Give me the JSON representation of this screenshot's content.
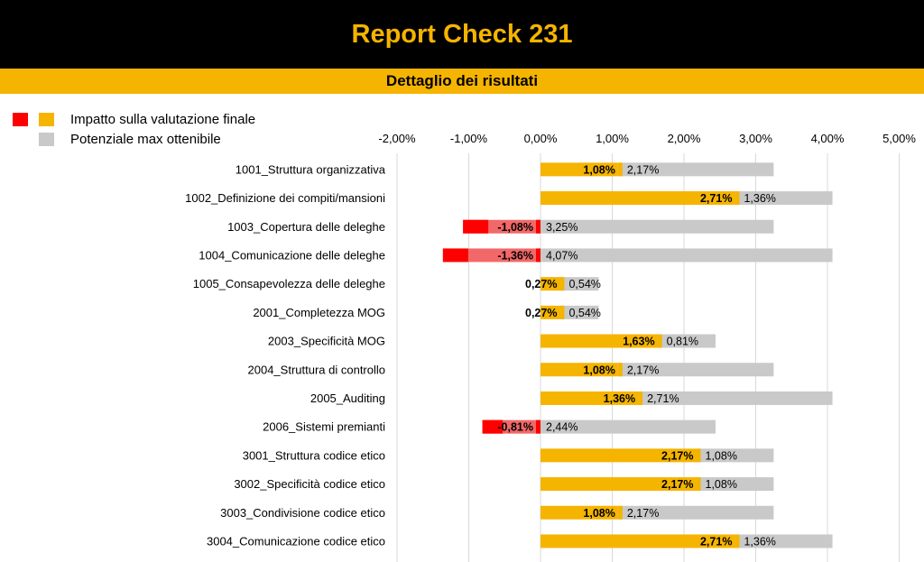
{
  "header": {
    "title": "Report Check 231",
    "subtitle": "Dettaglio dei risultati"
  },
  "legend": {
    "impact_label": "Impatto sulla valutazione finale",
    "potential_label": "Potenziale max ottenibile"
  },
  "colors": {
    "negative": "#ff0000",
    "negative_light": "#f26868",
    "positive": "#f5b400",
    "potential": "#c9c9c9",
    "title_bg": "#000000",
    "title_text": "#f5b400",
    "subtitle_bg": "#f5b400",
    "grid": "#d9d9d9"
  },
  "chart_data": {
    "type": "bar",
    "orientation": "horizontal",
    "stacked": true,
    "xlim": [
      -0.02,
      0.05
    ],
    "x_ticks": [
      "-2,00%",
      "-1,00%",
      "0,00%",
      "1,00%",
      "2,00%",
      "3,00%",
      "4,00%",
      "5,00%"
    ],
    "x_tick_values": [
      -0.02,
      -0.01,
      0,
      0.01,
      0.02,
      0.03,
      0.04,
      0.05
    ],
    "grid": true,
    "legend_position": "top-left",
    "categories": [
      "1001_Struttura organizzativa",
      "1002_Definizione dei compiti/mansioni",
      "1003_Copertura delle deleghe",
      "1004_Comunicazione delle deleghe",
      "1005_Consapevolezza delle deleghe",
      "2001_Completezza MOG",
      "2003_Specificità MOG",
      "2004_Struttura di controllo",
      "2005_Auditing",
      "2006_Sistemi premianti",
      "3001_Struttura codice etico",
      "3002_Specificità codice etico",
      "3003_Condivisione codice etico",
      "3004_Comunicazione codice etico"
    ],
    "series": [
      {
        "name": "Impatto sulla valutazione finale",
        "values": [
          0.0108,
          0.0271,
          -0.0108,
          -0.0136,
          0.0027,
          0.0027,
          0.0163,
          0.0108,
          0.0136,
          -0.0081,
          0.0217,
          0.0217,
          0.0108,
          0.0271
        ],
        "labels": [
          "1,08%",
          "2,71%",
          "-1,08%",
          "-1,36%",
          "0,27%",
          "0,27%",
          "1,63%",
          "1,08%",
          "1,36%",
          "-0,81%",
          "2,17%",
          "2,17%",
          "1,08%",
          "2,71%"
        ]
      },
      {
        "name": "Potenziale max ottenibile",
        "values": [
          0.0217,
          0.0136,
          0.0325,
          0.0407,
          0.0054,
          0.0054,
          0.0081,
          0.0217,
          0.0271,
          0.0244,
          0.0108,
          0.0108,
          0.0217,
          0.0136
        ],
        "labels": [
          "2,17%",
          "1,36%",
          "3,25%",
          "4,07%",
          "0,54%",
          "0,54%",
          "0,81%",
          "2,17%",
          "2,71%",
          "2,44%",
          "1,08%",
          "1,08%",
          "2,17%",
          "1,36%"
        ]
      }
    ]
  }
}
